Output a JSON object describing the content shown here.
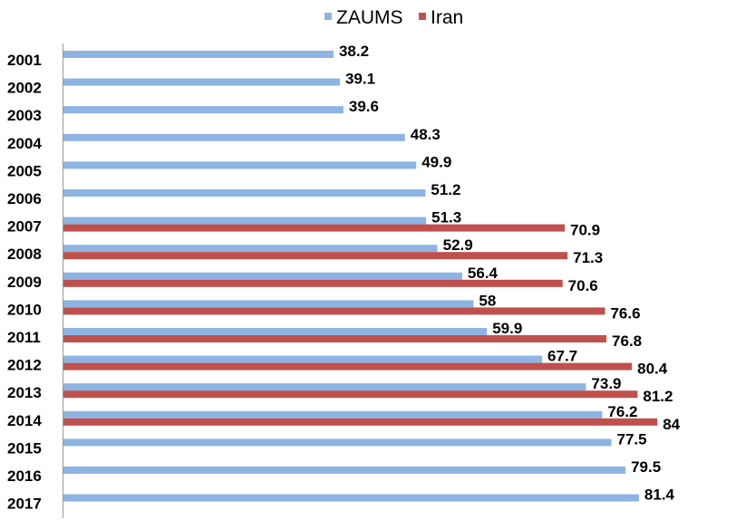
{
  "chart_data": {
    "type": "bar",
    "orientation": "horizontal",
    "categories": [
      "2001",
      "2002",
      "2003",
      "2004",
      "2005",
      "2006",
      "2007",
      "2008",
      "2009",
      "2010",
      "2011",
      "2012",
      "2013",
      "2014",
      "2015",
      "2016",
      "2017"
    ],
    "series": [
      {
        "name": "ZAUMS",
        "color": "#8DB4E2",
        "values": [
          38.2,
          39.1,
          39.6,
          48.3,
          49.9,
          51.2,
          51.3,
          52.9,
          56.4,
          58,
          59.9,
          67.7,
          73.9,
          76.2,
          77.5,
          79.5,
          81.4
        ]
      },
      {
        "name": "Iran",
        "color": "#C0504D",
        "values": [
          null,
          null,
          null,
          null,
          null,
          null,
          70.9,
          71.3,
          70.6,
          76.6,
          76.8,
          80.4,
          81.2,
          84,
          null,
          null,
          null
        ]
      }
    ],
    "xlim": [
      0,
      85
    ],
    "grid": false,
    "legend": "top-center",
    "data_labels": true
  }
}
